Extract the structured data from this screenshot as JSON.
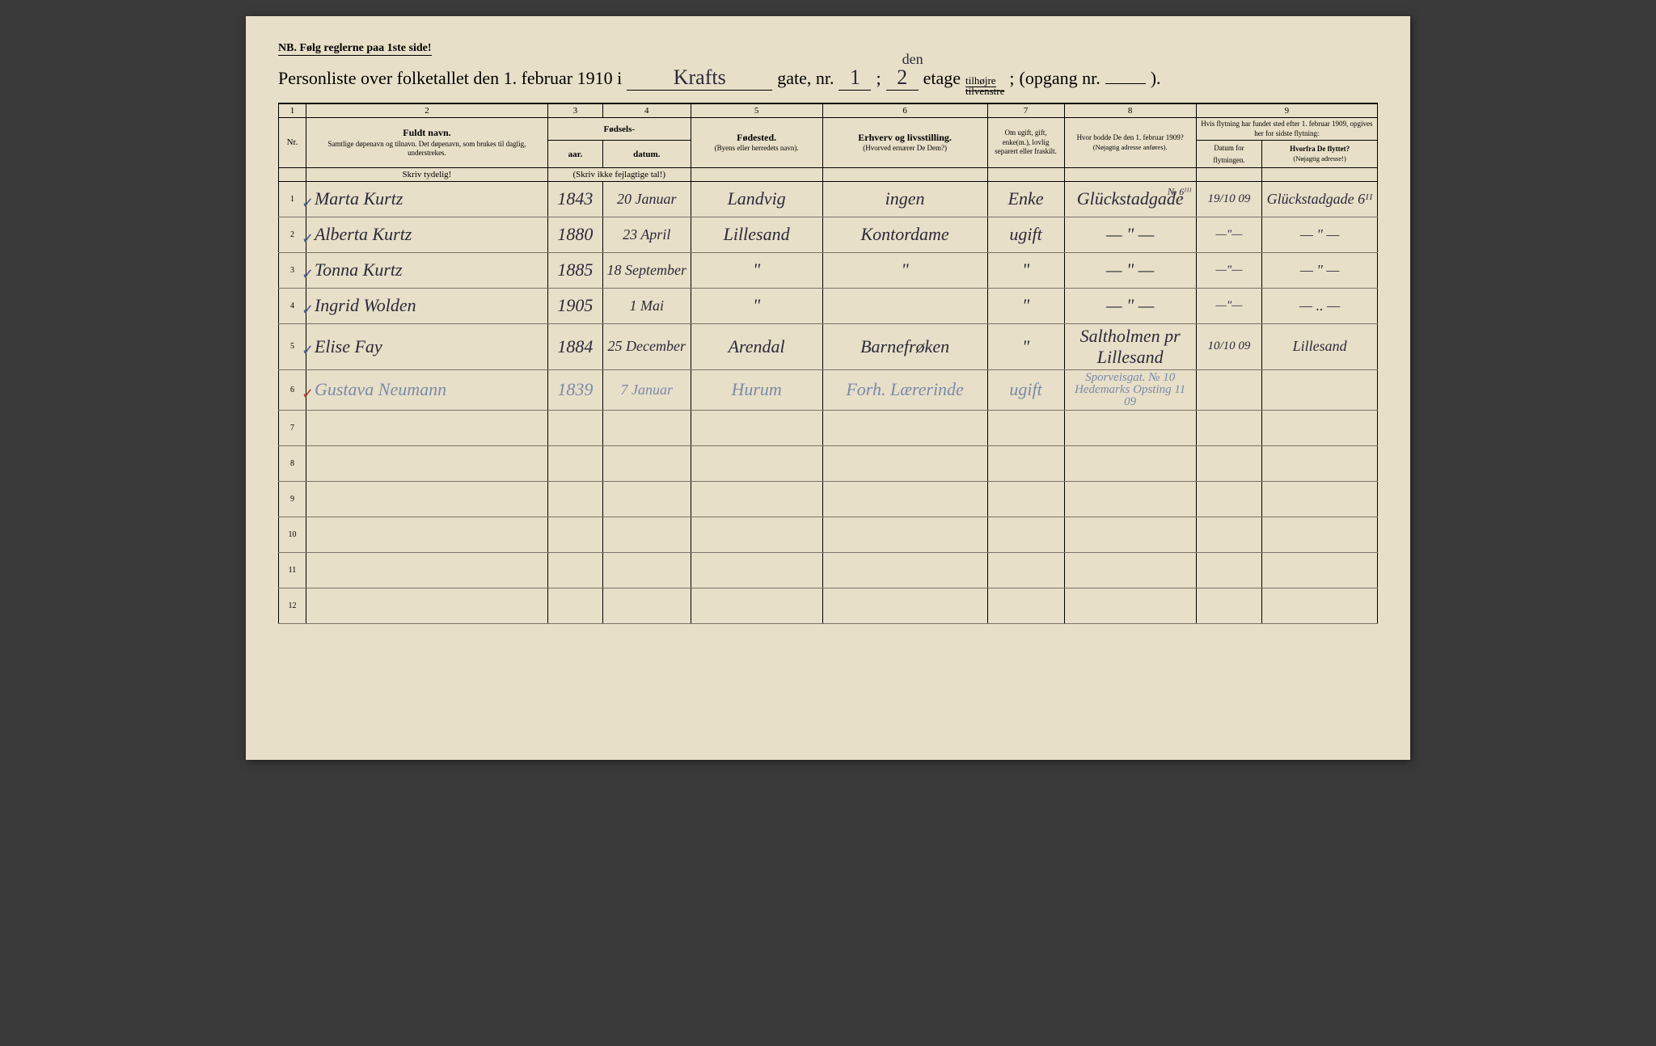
{
  "colors": {
    "paper": "#e8dfc8",
    "ink_print": "#1a1a1a",
    "ink_hand": "#2a2a3a",
    "ink_faded": "#7a8aaa",
    "checkmark": "#4a5a8a",
    "checkmark_red": "#b04030",
    "rule_line": "#7a7468"
  },
  "nb": "NB.  Følg reglerne paa 1ste side!",
  "title": {
    "prefix": "Personliste over folketallet den 1. februar 1910 i",
    "street_hand": "Krafts",
    "gate_label": "gate, nr.",
    "gate_nr": "1",
    "etage_nr": "2",
    "etage_annotation": "den",
    "etage_label": "etage",
    "side_label": "tilhøjre",
    "side_struck": "tilvenstre",
    "opgang_label": "(opgang nr.",
    "opgang_nr": "",
    "close": ")."
  },
  "column_numbers": [
    "1",
    "2",
    "3",
    "4",
    "5",
    "6",
    "7",
    "8",
    "9"
  ],
  "headers": {
    "nr": "Nr.",
    "name_main": "Fuldt navn.",
    "name_sub": "Samtlige døpenavn og tilnavn. Det døpenavn, som brukes til daglig, understrekes.",
    "name_instr": "Skriv tydelig!",
    "fodsels": "Fødsels-",
    "aar": "aar.",
    "datum": "datum.",
    "year_instr": "(Skriv ikke fejlagtige tal!)",
    "place_main": "Fødested.",
    "place_sub": "(Byens eller herredets navn).",
    "occ_main": "Erhverv og livsstilling.",
    "occ_sub": "(Hvorved ernærer De Dem?)",
    "marital": "Om ugift, gift, enke(m.), lovlig separert eller fraskilt.",
    "addr1909_main": "Hvor bodde De den 1. februar 1909?",
    "addr1909_sub": "(Nøjagtig adresse anføres).",
    "move_main": "Hvis flytning har fundet sted efter 1. februar 1909, opgives her for sidste flytning:",
    "move_date": "Datum for flytningen.",
    "move_from_main": "Hvorfra De flyttet?",
    "move_from_sub": "(Nøjagtig adresse!)"
  },
  "rows": [
    {
      "nr": "1",
      "check": "✓",
      "name": "Marta Kurtz",
      "year": "1843",
      "date": "20 Januar",
      "place": "Landvig",
      "occ": "ingen",
      "marital": "Enke",
      "addr1909": "Glückstadgade",
      "addr_super": "№ 6ᴵᴵᴵ",
      "mdate": "19/10 09",
      "mfrom": "Glückstadgade 6ᴵᴵ"
    },
    {
      "nr": "2",
      "check": "✓",
      "name": "Alberta Kurtz",
      "year": "1880",
      "date": "23 April",
      "place": "Lillesand",
      "occ": "Kontordame",
      "marital": "ugift",
      "addr1909": "— \" —",
      "mdate": "—\"—",
      "mfrom": "— \" —"
    },
    {
      "nr": "3",
      "check": "✓",
      "name": "Tonna Kurtz",
      "year": "1885",
      "date": "18 September",
      "place": "\"",
      "occ": "\"",
      "marital": "\"",
      "addr1909": "— \" —",
      "mdate": "—\"—",
      "mfrom": "— \" —"
    },
    {
      "nr": "4",
      "check": "✓",
      "name": "Ingrid Wolden",
      "year": "1905",
      "date": "1 Mai",
      "place": "\"",
      "occ": "",
      "marital": "\"",
      "addr1909": "— \" —",
      "mdate": "—\"—",
      "mfrom": "— .. —"
    },
    {
      "nr": "5",
      "check": "✓",
      "name": "Elise Fay",
      "year": "1884",
      "date": "25 December",
      "place": "Arendal",
      "occ": "Barnefrøken",
      "marital": "\"",
      "addr1909": "Saltholmen pr Lillesand",
      "mdate": "10/10 09",
      "mfrom": "Lillesand"
    },
    {
      "nr": "6",
      "check": "✓",
      "check_red": true,
      "faded": true,
      "name": "Gustava Neumann",
      "year": "1839",
      "date": "7 Januar",
      "place": "Hurum",
      "occ": "Forh. Lærerinde",
      "marital": "ugift",
      "addr1909": "Sporveisgat. № 10",
      "addr_sub": "Hedemarks Opsting 11 09",
      "mdate": "",
      "mfrom": ""
    },
    {
      "nr": "7",
      "check": "",
      "name": "",
      "year": "",
      "date": "",
      "place": "",
      "occ": "",
      "marital": "",
      "addr1909": "",
      "mdate": "",
      "mfrom": ""
    },
    {
      "nr": "8",
      "check": "",
      "name": "",
      "year": "",
      "date": "",
      "place": "",
      "occ": "",
      "marital": "",
      "addr1909": "",
      "mdate": "",
      "mfrom": ""
    },
    {
      "nr": "9",
      "check": "",
      "name": "",
      "year": "",
      "date": "",
      "place": "",
      "occ": "",
      "marital": "",
      "addr1909": "",
      "mdate": "",
      "mfrom": ""
    },
    {
      "nr": "10",
      "check": "",
      "name": "",
      "year": "",
      "date": "",
      "place": "",
      "occ": "",
      "marital": "",
      "addr1909": "",
      "mdate": "",
      "mfrom": ""
    },
    {
      "nr": "11",
      "check": "",
      "name": "",
      "year": "",
      "date": "",
      "place": "",
      "occ": "",
      "marital": "",
      "addr1909": "",
      "mdate": "",
      "mfrom": ""
    },
    {
      "nr": "12",
      "check": "",
      "name": "",
      "year": "",
      "date": "",
      "place": "",
      "occ": "",
      "marital": "",
      "addr1909": "",
      "mdate": "",
      "mfrom": ""
    }
  ]
}
